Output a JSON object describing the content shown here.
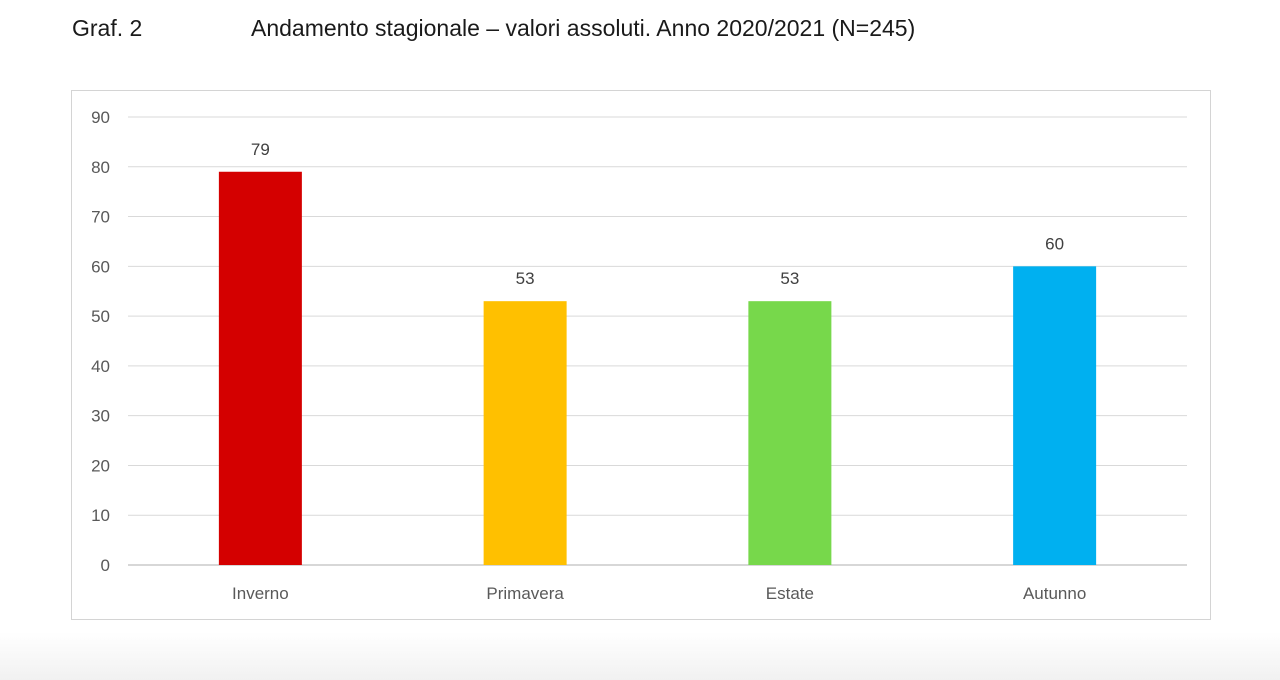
{
  "figure": {
    "number": "Graf. 2",
    "title": "Andamento stagionale – valori assoluti. Anno 2020/2021 (N=245)"
  },
  "chart_data": {
    "type": "bar",
    "categories": [
      "Inverno",
      "Primavera",
      "Estate",
      "Autunno"
    ],
    "values": [
      79,
      53,
      53,
      60
    ],
    "colors": [
      "#d40000",
      "#ffc000",
      "#77d84b",
      "#00b0f0"
    ],
    "ylim": [
      0,
      90
    ],
    "yticks": [
      0,
      10,
      20,
      30,
      40,
      50,
      60,
      70,
      80,
      90
    ],
    "grid": true,
    "legend": "none",
    "data_labels": true
  }
}
